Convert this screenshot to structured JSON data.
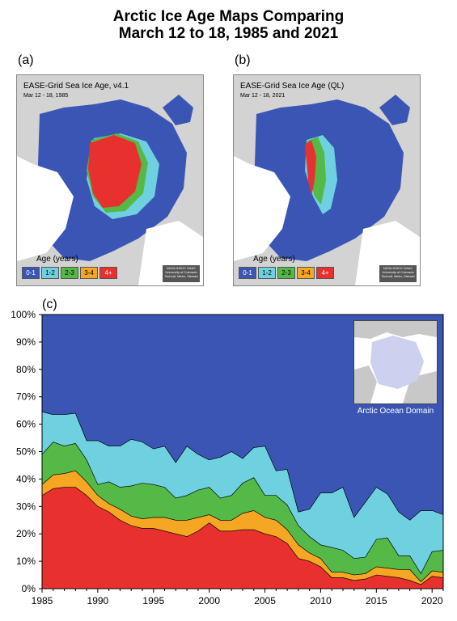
{
  "title_line1": "Arctic Ice Age Maps Comparing",
  "title_line2": "March 12 to 18, 1985 and 2021",
  "panel_a": {
    "label": "(a)",
    "map_title": "EASE-Grid Sea Ice Age, v4.1",
    "date": "Mar 12 - 18, 1985",
    "age_title": "Age (years)",
    "credit": "NASA NSIDC DAAC University of Colorado Tschudi, Meier, Stewart"
  },
  "panel_b": {
    "label": "(b)",
    "map_title": "EASE-Grid Sea Ice Age (QL)",
    "date": "Mar 12 - 18, 2021",
    "age_title": "Age (years)",
    "credit": "NASA NSIDC DAAC University of Colorado Tschudi, Meier, Stewart"
  },
  "legend": [
    {
      "label": "0-1",
      "color": "#3a55b4"
    },
    {
      "label": "1-2",
      "color": "#6fd0e0"
    },
    {
      "label": "2-3",
      "color": "#55b947"
    },
    {
      "label": "3-4",
      "color": "#f5a623"
    },
    {
      "label": "4+",
      "color": "#e8312f"
    }
  ],
  "panel_c": {
    "label": "(c)",
    "inset_label": "Arctic Ocean Domain"
  },
  "chart_data": {
    "type": "area",
    "stacked": true,
    "x": [
      1985,
      1986,
      1987,
      1988,
      1989,
      1990,
      1991,
      1992,
      1993,
      1994,
      1995,
      1996,
      1997,
      1998,
      1999,
      2000,
      2001,
      2002,
      2003,
      2004,
      2005,
      2006,
      2007,
      2008,
      2009,
      2010,
      2011,
      2012,
      2013,
      2014,
      2015,
      2016,
      2017,
      2018,
      2019,
      2020,
      2021
    ],
    "xticks": [
      "1985",
      "1990",
      "1995",
      "2000",
      "2005",
      "2010",
      "2015",
      "2020"
    ],
    "xlim": [
      1985,
      2021
    ],
    "yticks": [
      "0%",
      "10%",
      "20%",
      "30%",
      "40%",
      "50%",
      "60%",
      "70%",
      "80%",
      "90%",
      "100%"
    ],
    "ylim": [
      0,
      100
    ],
    "grid": false,
    "series": [
      {
        "name": "4+",
        "color": "#e8312f",
        "values": [
          34,
          36.5,
          37,
          37,
          34,
          30,
          28,
          25,
          23,
          22,
          22,
          21,
          20,
          19,
          21,
          24,
          21,
          21,
          21.5,
          21.5,
          20,
          19,
          16.5,
          11,
          10,
          8,
          4,
          4,
          3,
          3.5,
          5,
          4.5,
          4,
          3,
          1.5,
          4.5,
          4
        ]
      },
      {
        "name": "3-4",
        "color": "#f5a623",
        "values": [
          4,
          5,
          5,
          6,
          5,
          4,
          3,
          4,
          3.5,
          3.5,
          4,
          5,
          5,
          6,
          5,
          3,
          4,
          4,
          6,
          7,
          6,
          6,
          5,
          5,
          3,
          3,
          2,
          2,
          2,
          2,
          3,
          3,
          3,
          4,
          1,
          2,
          2
        ]
      },
      {
        "name": "2-3",
        "color": "#55b947",
        "values": [
          11,
          12,
          10,
          10,
          8,
          4,
          8,
          8,
          11,
          13,
          12,
          11,
          8,
          9,
          10,
          10,
          8,
          9,
          11,
          12,
          8,
          9,
          9,
          7,
          6,
          5,
          9,
          8,
          6,
          6,
          10,
          11,
          5,
          5,
          3,
          7,
          8
        ]
      },
      {
        "name": "1-2",
        "color": "#6fd0e0",
        "values": [
          15.5,
          10,
          11.5,
          11,
          7,
          16,
          13,
          15,
          17,
          15,
          13,
          15,
          13,
          18,
          13,
          10,
          15,
          16,
          9,
          11,
          18,
          9,
          13,
          5,
          10,
          19,
          20,
          23,
          15,
          20,
          19,
          16,
          16,
          13,
          23,
          15,
          13
        ]
      },
      {
        "name": "0-1",
        "color": "#3a55b4",
        "values": [
          35.5,
          36.5,
          36.5,
          36,
          46,
          46,
          48,
          48,
          45.5,
          46.5,
          49,
          48,
          54,
          48,
          51,
          53,
          52,
          50,
          52.5,
          48.5,
          48,
          57,
          56.5,
          72,
          71,
          65,
          65,
          63,
          74,
          68.5,
          63,
          65.5,
          72,
          75,
          71.5,
          71.5,
          73
        ]
      }
    ]
  }
}
